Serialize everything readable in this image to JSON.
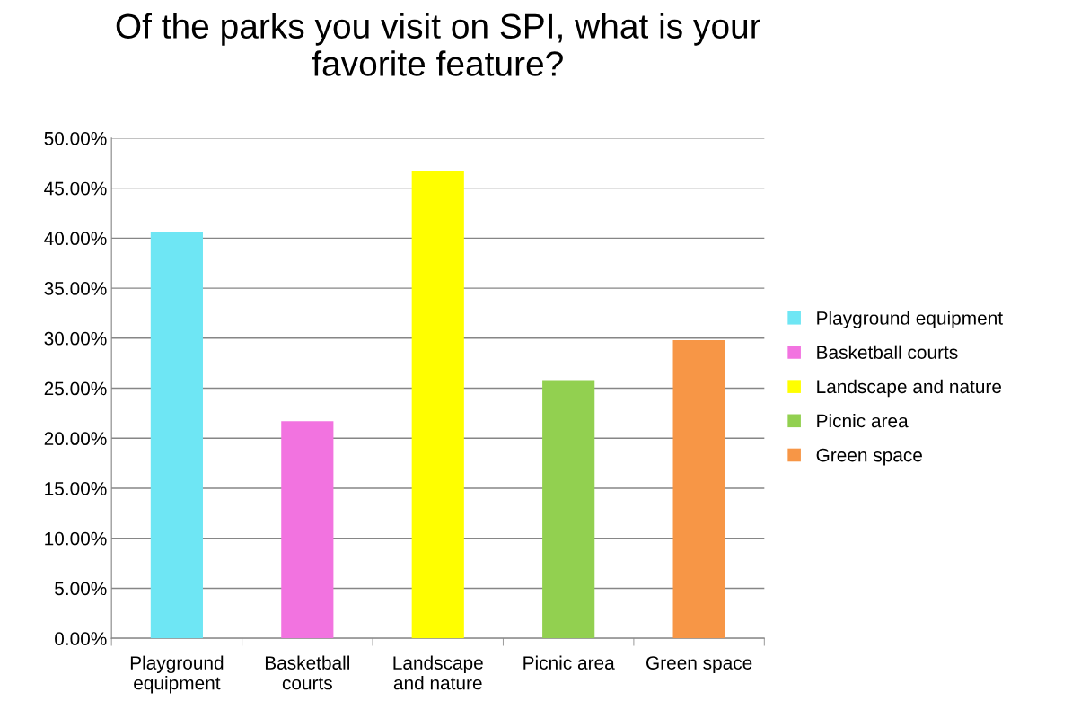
{
  "chart_data": {
    "type": "bar",
    "title": "Of the parks you visit on SPI, what is your\nfavorite feature?",
    "categories": [
      "Playground\nequipment",
      "Basketball\ncourts",
      "Landscape\nand nature",
      "Picnic area",
      "Green space"
    ],
    "series": [
      {
        "name": "Playground equipment",
        "color": "#6ee6f4",
        "values": [
          40.6,
          null,
          null,
          null,
          null
        ]
      },
      {
        "name": "Basketball courts",
        "color": "#f273e0",
        "values": [
          null,
          21.7,
          null,
          null,
          null
        ]
      },
      {
        "name": "Landscape and nature",
        "color": "#ffff00",
        "values": [
          null,
          null,
          46.7,
          null,
          null
        ]
      },
      {
        "name": "Picnic area",
        "color": "#92d050",
        "values": [
          null,
          null,
          null,
          25.8,
          null
        ]
      },
      {
        "name": "Green space",
        "color": "#f79646",
        "values": [
          null,
          null,
          null,
          null,
          29.8
        ]
      }
    ],
    "ylim": [
      0,
      50
    ],
    "yticks": [
      {
        "value": 0,
        "label": "0.00%"
      },
      {
        "value": 5,
        "label": "5.00%"
      },
      {
        "value": 10,
        "label": "10.00%"
      },
      {
        "value": 15,
        "label": "15.00%"
      },
      {
        "value": 20,
        "label": "20.00%"
      },
      {
        "value": 25,
        "label": "25.00%"
      },
      {
        "value": 30,
        "label": "30.00%"
      },
      {
        "value": 35,
        "label": "35.00%"
      },
      {
        "value": 40,
        "label": "40.00%"
      },
      {
        "value": 45,
        "label": "45.00%"
      },
      {
        "value": 50,
        "label": "50.00%"
      }
    ],
    "grid": "y",
    "legend": "right"
  }
}
